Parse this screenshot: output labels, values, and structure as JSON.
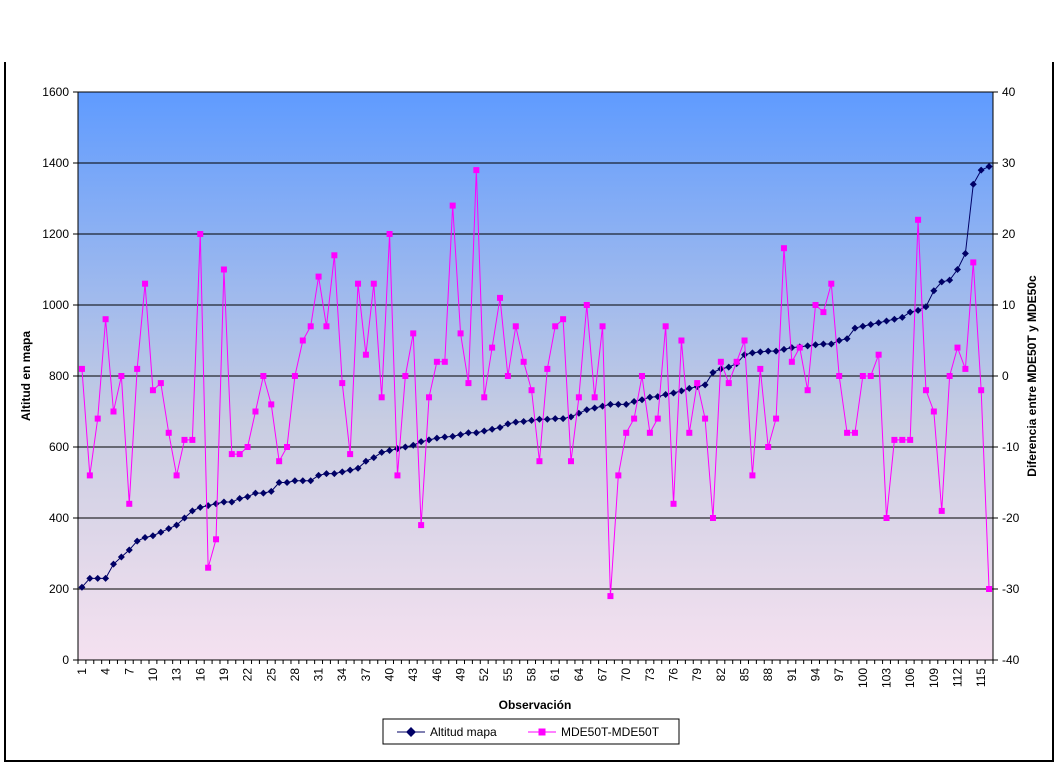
{
  "chart_data": {
    "type": "line",
    "title": "",
    "xlabel": "Observación",
    "ylabel": "Altitud en mapa",
    "y2label": "Diferencia entre MDE50T y MDE50c",
    "ylim": [
      0,
      1600
    ],
    "y2lim": [
      -40,
      40
    ],
    "yticks": [
      0,
      200,
      400,
      600,
      800,
      1000,
      1200,
      1400,
      1600
    ],
    "y2ticks": [
      -40,
      -30,
      -20,
      -10,
      0,
      10,
      20,
      30,
      40
    ],
    "xticks": [
      1,
      4,
      7,
      10,
      13,
      16,
      19,
      22,
      25,
      28,
      31,
      34,
      37,
      40,
      43,
      46,
      49,
      52,
      55,
      58,
      61,
      64,
      67,
      70,
      73,
      76,
      79,
      82,
      85,
      88,
      91,
      94,
      97,
      100,
      103,
      106,
      109,
      112,
      115
    ],
    "x_count": 116,
    "grid": "horizontal",
    "legend": "bottom",
    "background_gradient": [
      "#5f9bff",
      "#c8cde2",
      "#f5e1f0"
    ],
    "series": [
      {
        "name": "Altitud mapa",
        "axis": "left",
        "color": "#000066",
        "marker": "diamond",
        "values": [
          205,
          230,
          230,
          230,
          270,
          290,
          310,
          335,
          345,
          350,
          360,
          370,
          380,
          400,
          420,
          430,
          435,
          440,
          445,
          445,
          455,
          460,
          470,
          470,
          475,
          500,
          500,
          505,
          505,
          505,
          520,
          525,
          525,
          530,
          535,
          540,
          560,
          570,
          585,
          590,
          595,
          600,
          605,
          615,
          620,
          625,
          628,
          630,
          635,
          640,
          640,
          645,
          650,
          655,
          665,
          670,
          672,
          675,
          678,
          678,
          680,
          680,
          685,
          695,
          705,
          710,
          715,
          720,
          720,
          720,
          728,
          733,
          740,
          742,
          748,
          752,
          758,
          765,
          770,
          775,
          810,
          820,
          825,
          835,
          860,
          865,
          868,
          870,
          870,
          875,
          880,
          882,
          885,
          888,
          890,
          890,
          900,
          905,
          935,
          940,
          945,
          950,
          955,
          960,
          965,
          980,
          985,
          995,
          1040,
          1065,
          1070,
          1100,
          1145,
          1340,
          1380,
          1390
        ]
      },
      {
        "name": "MDE50T-MDE50T",
        "axis": "right",
        "color": "#ff00ff",
        "marker": "square",
        "values": [
          1,
          -14,
          -6,
          8,
          -5,
          0,
          -18,
          1,
          13,
          -2,
          -1,
          -8,
          -14,
          -9,
          -9,
          20,
          -27,
          -23,
          15,
          -11,
          -11,
          -10,
          -5,
          0,
          -4,
          -12,
          -10,
          0,
          5,
          7,
          14,
          7,
          17,
          -1,
          -11,
          13,
          3,
          13,
          -3,
          20,
          -14,
          0,
          6,
          -21,
          -3,
          2,
          2,
          24,
          6,
          -1,
          29,
          -3,
          4,
          11,
          0,
          7,
          2,
          -2,
          -12,
          1,
          7,
          8,
          -12,
          -3,
          10,
          -3,
          7,
          -31,
          -14,
          -8,
          -6,
          0,
          -8,
          -6,
          7,
          -18,
          5,
          -8,
          -1,
          -6,
          -20,
          2,
          -1,
          2,
          5,
          -14,
          1,
          -10,
          -6,
          18,
          2,
          4,
          -2,
          10,
          9,
          13,
          0,
          -8,
          -8,
          0,
          0,
          3,
          -20,
          -9,
          -9,
          -9,
          22,
          -2,
          -5,
          -19,
          0,
          4,
          1,
          16,
          -2,
          -30
        ]
      }
    ]
  }
}
